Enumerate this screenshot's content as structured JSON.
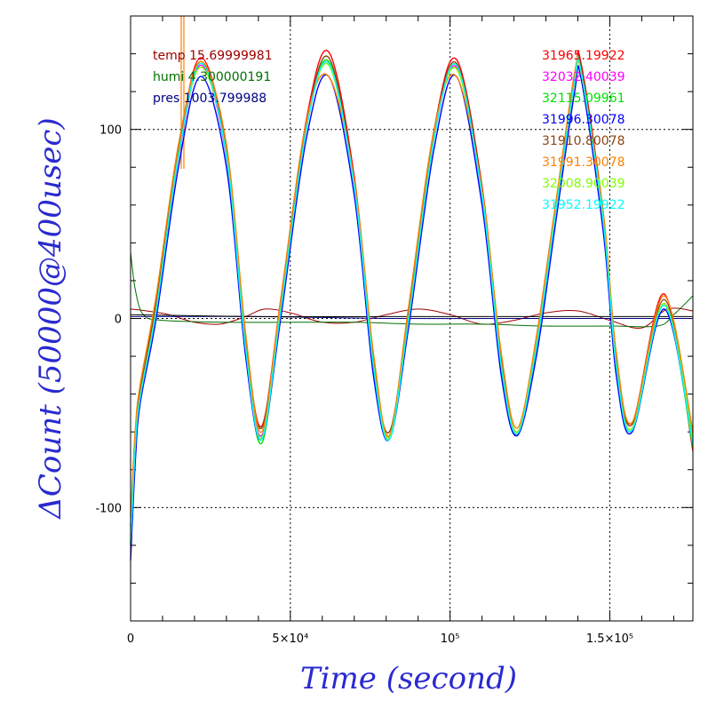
{
  "chart_data": {
    "type": "line",
    "xlabel": "Time (second)",
    "ylabel": "ΔCount (50000@400usec)",
    "xlim": [
      0,
      176000
    ],
    "ylim": [
      -160,
      160
    ],
    "x_ticks": [
      {
        "value": 0,
        "label": "0"
      },
      {
        "value": 50000,
        "label": "5×10⁴"
      },
      {
        "value": 100000,
        "label": "10⁵"
      },
      {
        "value": 150000,
        "label": "1.5×10⁵"
      }
    ],
    "y_ticks": [
      {
        "value": -100,
        "label": "-100"
      },
      {
        "value": 0,
        "label": "0"
      },
      {
        "value": 100,
        "label": "100"
      }
    ],
    "grid": true,
    "env_legend": [
      {
        "label": "temp 15.69999981",
        "color": "#a00000"
      },
      {
        "label": "humi 4.300000191",
        "color": "#007000"
      },
      {
        "label": "pres 1003.799988",
        "color": "#000080"
      }
    ],
    "legend_position": "top-right",
    "series": [
      {
        "name": "31965.19922",
        "color": "#ff0000",
        "values": [
          -120,
          -65,
          -40,
          10,
          90,
          138,
          90,
          -10,
          -57,
          10,
          105,
          141,
          75,
          -20,
          -62,
          5,
          100,
          137,
          70,
          -20,
          -62,
          -10,
          60,
          128,
          135,
          55,
          -20,
          -55,
          13,
          -70
        ]
      },
      {
        "name": "32032.40039",
        "color": "#ff00ff",
        "values": [
          -115,
          -70,
          -40,
          5,
          85,
          134,
          85,
          -15,
          -62,
          5,
          100,
          135,
          70,
          -25,
          -63,
          0,
          95,
          133,
          65,
          -25,
          -60,
          -15,
          55,
          125,
          131,
          50,
          -25,
          -58,
          8,
          -62
        ]
      },
      {
        "name": "32115.09961",
        "color": "#00e000",
        "values": [
          -118,
          -68,
          -42,
          4,
          86,
          136,
          86,
          -16,
          -66,
          4,
          101,
          136,
          71,
          -26,
          -64,
          -1,
          96,
          134,
          66,
          -26,
          -61,
          -16,
          56,
          126,
          132,
          51,
          -26,
          -59,
          7,
          -68
        ]
      },
      {
        "name": "31996.30078",
        "color": "#0000ff",
        "values": [
          -128,
          -75,
          -45,
          0,
          80,
          128,
          80,
          -20,
          -64,
          0,
          95,
          128,
          65,
          -30,
          -64,
          -5,
          90,
          128,
          60,
          -30,
          -62,
          -20,
          50,
          120,
          127,
          45,
          -30,
          -60,
          5,
          -65
        ]
      },
      {
        "name": "31910.80078",
        "color": "#8b4513",
        "values": [
          -110,
          -60,
          -38,
          8,
          88,
          135,
          88,
          -12,
          -58,
          8,
          102,
          138,
          72,
          -22,
          -60,
          3,
          98,
          135,
          68,
          -22,
          -60,
          -12,
          58,
          127,
          133,
          53,
          -22,
          -56,
          10,
          -60
        ]
      },
      {
        "name": "31991.30078",
        "color": "#ff8000",
        "values": [
          -105,
          -58,
          -35,
          12,
          92,
          136,
          92,
          -8,
          -60,
          10,
          104,
          128,
          73,
          -18,
          -62,
          6,
          100,
          128,
          68,
          -18,
          -58,
          -10,
          60,
          130,
          130,
          55,
          -18,
          -55,
          12,
          -60
        ]
      },
      {
        "name": "32008.90039",
        "color": "#80ff00",
        "values": [
          -117,
          -66,
          -41,
          5,
          87,
          133,
          87,
          -15,
          -63,
          5,
          100,
          134,
          70,
          -24,
          -63,
          0,
          96,
          132,
          66,
          -24,
          -60,
          -14,
          56,
          125,
          130,
          51,
          -24,
          -58,
          8,
          -64
        ]
      },
      {
        "name": "31952.19922",
        "color": "#00ffff",
        "values": [
          -119,
          -67,
          -42,
          4,
          86,
          135,
          86,
          -16,
          -64,
          4,
          100,
          135,
          70,
          -25,
          -64,
          -1,
          95,
          134,
          65,
          -25,
          -61,
          -15,
          55,
          126,
          131,
          50,
          -25,
          -59,
          7,
          -66
        ]
      }
    ],
    "series_x": [
      0,
      1500,
      3000,
      8000,
      15000,
      22000,
      30000,
      36000,
      41000,
      47000,
      55000,
      62000,
      70000,
      76000,
      81000,
      87000,
      95000,
      102000,
      110000,
      116000,
      121000,
      127000,
      133000,
      139000,
      141000,
      148000,
      152000,
      157000,
      167000,
      176000
    ],
    "env_series": [
      {
        "color": "#a00000",
        "x": [
          0,
          5000,
          12000,
          20000,
          28000,
          36000,
          42000,
          50000,
          60000,
          70000,
          80000,
          90000,
          100000,
          110000,
          120000,
          130000,
          140000,
          150000,
          160000,
          168000,
          176000
        ],
        "values": [
          5,
          4,
          2,
          -2,
          -3,
          1,
          5,
          3,
          -2,
          -2,
          2,
          5,
          2,
          -3,
          -1,
          3,
          4,
          -1,
          -5,
          5,
          4
        ]
      },
      {
        "color": "#007000",
        "x": [
          0,
          1500,
          4000,
          10000,
          30000,
          50000,
          70000,
          90000,
          110000,
          130000,
          150000,
          165000,
          170000,
          176000
        ],
        "values": [
          35,
          15,
          2,
          -1,
          -2,
          -2,
          -2,
          -3,
          -3,
          -4,
          -4,
          -4,
          2,
          12
        ]
      },
      {
        "color": "#000080",
        "x": [
          0,
          40000,
          80000,
          120000,
          160000,
          176000
        ],
        "values": [
          1,
          1,
          0,
          0,
          0,
          0
        ]
      },
      {
        "color": "#000000",
        "x": [
          0,
          40000,
          80000,
          120000,
          160000,
          176000
        ],
        "values": [
          2,
          1,
          1,
          1,
          1,
          1
        ]
      }
    ]
  }
}
